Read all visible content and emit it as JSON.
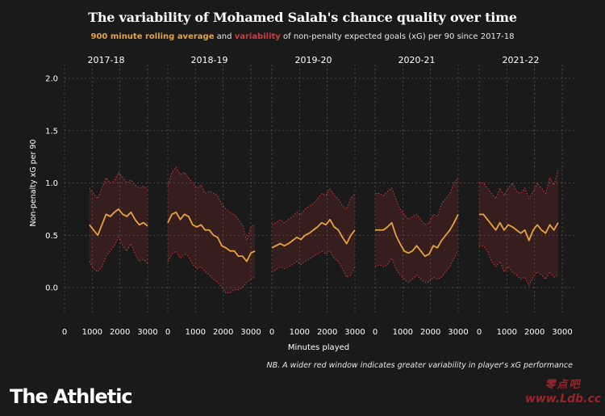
{
  "header": {
    "title": "The variability of Mohamed Salah's chance quality over time",
    "subtitle_avg": "900 minute rolling average",
    "subtitle_and": "and",
    "subtitle_var": "variability",
    "subtitle_rest": "of non-penalty expected goals (xG) per 90 since 2017-18"
  },
  "footer": {
    "note": "NB. A wider red window indicates greater variability in player's xG performance",
    "logo": "The Athletic",
    "watermark_cn": "零点吧",
    "watermark_url": "www.Ldb.cc"
  },
  "colors": {
    "background": "#1a1a1a",
    "average_line": "#e8a33a",
    "variability_band": "#d03a3f",
    "grid": "#555555"
  },
  "chart_data": {
    "type": "line",
    "ylabel": "Non-penalty xG per 90",
    "xlabel": "Minutes played",
    "ylim": [
      0,
      2.0
    ],
    "yticks": [
      0.0,
      0.5,
      1.0,
      1.5,
      2.0
    ],
    "xlim": [
      0,
      3000
    ],
    "xticks": [
      0,
      1000,
      2000,
      3000
    ],
    "grid": true,
    "panels": [
      {
        "season": "2017-18",
        "x": [
          900,
          1050,
          1200,
          1350,
          1500,
          1650,
          1800,
          1950,
          2100,
          2250,
          2400,
          2550,
          2700,
          2850,
          3000
        ],
        "avg": [
          0.6,
          0.55,
          0.5,
          0.6,
          0.7,
          0.68,
          0.72,
          0.75,
          0.7,
          0.68,
          0.72,
          0.65,
          0.6,
          0.62,
          0.59
        ],
        "upper": [
          0.95,
          0.9,
          0.85,
          0.95,
          1.05,
          1.0,
          1.02,
          1.1,
          1.05,
          1.0,
          1.03,
          0.98,
          0.95,
          0.97,
          0.94
        ],
        "lower": [
          0.25,
          0.18,
          0.15,
          0.2,
          0.3,
          0.35,
          0.4,
          0.48,
          0.4,
          0.35,
          0.42,
          0.32,
          0.25,
          0.27,
          0.23
        ]
      },
      {
        "season": "2018-19",
        "x": [
          0,
          150,
          300,
          450,
          600,
          750,
          900,
          1050,
          1200,
          1350,
          1500,
          1650,
          1800,
          1950,
          2100,
          2250,
          2400,
          2550,
          2700,
          2850,
          3000,
          3150
        ],
        "avg": [
          0.62,
          0.7,
          0.72,
          0.65,
          0.7,
          0.68,
          0.6,
          0.58,
          0.6,
          0.55,
          0.55,
          0.5,
          0.48,
          0.4,
          0.38,
          0.35,
          0.35,
          0.3,
          0.3,
          0.25,
          0.33,
          0.35
        ],
        "upper": [
          0.98,
          1.1,
          1.15,
          1.08,
          1.1,
          1.05,
          1.0,
          0.95,
          0.98,
          0.9,
          0.92,
          0.9,
          0.88,
          0.8,
          0.75,
          0.72,
          0.7,
          0.65,
          0.6,
          0.45,
          0.58,
          0.6
        ],
        "lower": [
          0.25,
          0.32,
          0.35,
          0.28,
          0.32,
          0.3,
          0.22,
          0.18,
          0.2,
          0.15,
          0.12,
          0.08,
          0.05,
          0.0,
          -0.05,
          -0.05,
          -0.02,
          -0.02,
          0.0,
          0.05,
          0.08,
          0.1
        ]
      },
      {
        "season": "2019-20",
        "x": [
          0,
          150,
          300,
          450,
          600,
          750,
          900,
          1050,
          1200,
          1350,
          1500,
          1650,
          1800,
          1950,
          2100,
          2250,
          2400,
          2550,
          2700,
          2850,
          3000
        ],
        "avg": [
          0.38,
          0.4,
          0.42,
          0.4,
          0.42,
          0.45,
          0.48,
          0.46,
          0.5,
          0.52,
          0.55,
          0.58,
          0.62,
          0.6,
          0.65,
          0.58,
          0.55,
          0.48,
          0.42,
          0.5,
          0.55
        ],
        "upper": [
          0.6,
          0.62,
          0.65,
          0.62,
          0.65,
          0.68,
          0.72,
          0.7,
          0.75,
          0.78,
          0.8,
          0.85,
          0.9,
          0.88,
          0.95,
          0.88,
          0.85,
          0.78,
          0.75,
          0.85,
          0.9
        ],
        "lower": [
          0.15,
          0.17,
          0.2,
          0.18,
          0.2,
          0.22,
          0.25,
          0.22,
          0.25,
          0.27,
          0.3,
          0.32,
          0.35,
          0.32,
          0.35,
          0.28,
          0.25,
          0.18,
          0.1,
          0.12,
          0.2
        ]
      },
      {
        "season": "2020-21",
        "x": [
          0,
          150,
          300,
          450,
          600,
          750,
          900,
          1050,
          1200,
          1350,
          1500,
          1650,
          1800,
          1950,
          2100,
          2250,
          2400,
          2550,
          2700,
          2850,
          3000
        ],
        "avg": [
          0.55,
          0.55,
          0.55,
          0.58,
          0.62,
          0.5,
          0.42,
          0.35,
          0.33,
          0.35,
          0.4,
          0.35,
          0.3,
          0.32,
          0.4,
          0.38,
          0.45,
          0.5,
          0.55,
          0.62,
          0.7
        ],
        "upper": [
          0.9,
          0.9,
          0.88,
          0.92,
          0.95,
          0.85,
          0.75,
          0.7,
          0.65,
          0.68,
          0.7,
          0.65,
          0.6,
          0.62,
          0.7,
          0.68,
          0.8,
          0.85,
          0.9,
          1.0,
          1.05
        ],
        "lower": [
          0.2,
          0.22,
          0.2,
          0.22,
          0.28,
          0.18,
          0.12,
          0.08,
          0.05,
          0.08,
          0.12,
          0.08,
          0.05,
          0.05,
          0.1,
          0.08,
          0.1,
          0.15,
          0.2,
          0.28,
          0.35
        ]
      },
      {
        "season": "2021-22",
        "x": [
          0,
          150,
          300,
          450,
          600,
          750,
          900,
          1050,
          1200,
          1350,
          1500,
          1650,
          1800,
          1950,
          2100,
          2250,
          2400,
          2550,
          2700,
          2850
        ],
        "avg": [
          0.7,
          0.7,
          0.65,
          0.6,
          0.55,
          0.62,
          0.55,
          0.6,
          0.58,
          0.55,
          0.52,
          0.55,
          0.45,
          0.55,
          0.6,
          0.55,
          0.52,
          0.6,
          0.55,
          0.62
        ],
        "upper": [
          1.0,
          1.0,
          0.95,
          0.9,
          0.85,
          0.95,
          0.88,
          0.95,
          1.0,
          0.92,
          0.9,
          0.95,
          0.85,
          0.92,
          1.0,
          0.95,
          0.9,
          1.05,
          0.98,
          1.12
        ],
        "lower": [
          0.4,
          0.4,
          0.35,
          0.25,
          0.2,
          0.25,
          0.15,
          0.2,
          0.15,
          0.12,
          0.08,
          0.1,
          0.02,
          0.1,
          0.15,
          0.12,
          0.08,
          0.15,
          0.1,
          0.12
        ]
      }
    ]
  }
}
